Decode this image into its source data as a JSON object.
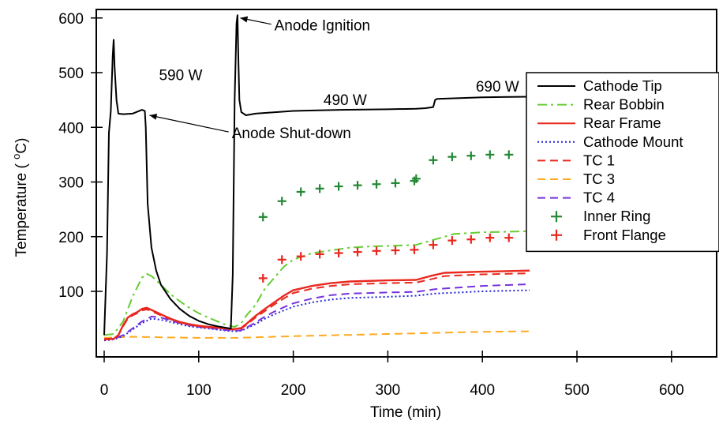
{
  "chart_data": {
    "type": "line",
    "title": "",
    "xlabel": "Time (min)",
    "ylabel_parts": {
      "pre": "Temperature ( ",
      "sup": "o",
      "post": "C)"
    },
    "xlim": [
      -10,
      650
    ],
    "ylim": [
      0,
      620
    ],
    "xticks": [
      0,
      100,
      200,
      300,
      400,
      500,
      600
    ],
    "yticks": [
      100,
      200,
      300,
      400,
      500,
      600
    ],
    "grid": false,
    "legend_position": "right",
    "annotations": [
      {
        "id": "anno-590w",
        "text": "590 W",
        "x": 58,
        "y": 486,
        "arrow_to": null
      },
      {
        "id": "anno-490w",
        "text": "490 W",
        "x": 232,
        "y": 441,
        "arrow_to": null
      },
      {
        "id": "anno-690w",
        "text": "690 W",
        "x": 393,
        "y": 465,
        "arrow_to": null
      },
      {
        "id": "anno-ignition",
        "text": "Anode Ignition",
        "x": 180,
        "y": 577,
        "arrow_to": [
          144,
          600
        ]
      },
      {
        "id": "anno-shutdown",
        "text": "Anode Shut-down",
        "x": 135,
        "y": 380,
        "arrow_to": [
          48,
          422
        ]
      }
    ],
    "series": [
      {
        "name": "Cathode Tip",
        "color": "#000000",
        "style": "solid",
        "marker": "none",
        "x": [
          0,
          3,
          5,
          7,
          9,
          10,
          11,
          13,
          15,
          20,
          30,
          40,
          43,
          44,
          46,
          50,
          55,
          60,
          70,
          80,
          90,
          100,
          110,
          120,
          130,
          134,
          136,
          138,
          140,
          141,
          142,
          143,
          145,
          150,
          160,
          200,
          250,
          300,
          330,
          340,
          348,
          350,
          352,
          400,
          450
        ],
        "y": [
          20,
          170,
          390,
          430,
          530,
          560,
          510,
          450,
          425,
          424,
          425,
          432,
          430,
          400,
          260,
          180,
          138,
          112,
          86,
          68,
          55,
          46,
          40,
          36,
          33,
          32,
          130,
          450,
          590,
          605,
          520,
          450,
          428,
          422,
          425,
          430,
          432,
          433,
          434,
          435,
          437,
          450,
          452,
          455,
          456
        ]
      },
      {
        "name": "Rear Bobbin",
        "color": "#66cc33",
        "style": "dashdot",
        "marker": "none",
        "x": [
          0,
          10,
          20,
          30,
          40,
          45,
          50,
          60,
          70,
          80,
          90,
          100,
          110,
          120,
          130,
          138,
          145,
          150,
          160,
          170,
          180,
          190,
          200,
          220,
          240,
          260,
          280,
          300,
          330,
          350,
          370,
          400,
          450
        ],
        "y": [
          20,
          22,
          45,
          90,
          125,
          132,
          128,
          112,
          95,
          82,
          70,
          60,
          52,
          45,
          38,
          35,
          42,
          55,
          75,
          105,
          125,
          145,
          158,
          170,
          175,
          180,
          182,
          183,
          185,
          195,
          205,
          208,
          210
        ]
      },
      {
        "name": "Rear Frame",
        "color": "#e8281e",
        "style": "solid",
        "marker": "none",
        "x": [
          0,
          10,
          15,
          20,
          25,
          30,
          35,
          40,
          45,
          50,
          60,
          70,
          80,
          90,
          100,
          110,
          120,
          130,
          138,
          145,
          150,
          160,
          170,
          180,
          190,
          200,
          220,
          240,
          260,
          300,
          330,
          345,
          360,
          400,
          450
        ],
        "y": [
          12,
          13,
          20,
          38,
          52,
          58,
          62,
          68,
          70,
          66,
          58,
          50,
          44,
          40,
          37,
          35,
          34,
          32,
          31,
          33,
          40,
          55,
          68,
          80,
          92,
          102,
          110,
          115,
          118,
          120,
          121,
          128,
          134,
          136,
          138
        ]
      },
      {
        "name": "Cathode Mount",
        "color": "#2222dd",
        "style": "dotted",
        "marker": "none",
        "x": [
          0,
          10,
          20,
          30,
          40,
          50,
          60,
          70,
          80,
          90,
          100,
          110,
          120,
          130,
          140,
          145,
          150,
          160,
          170,
          180,
          190,
          200,
          220,
          240,
          260,
          300,
          330,
          350,
          400,
          450
        ],
        "y": [
          10,
          12,
          18,
          30,
          42,
          50,
          48,
          44,
          40,
          36,
          34,
          32,
          30,
          28,
          27,
          28,
          32,
          40,
          50,
          58,
          65,
          72,
          80,
          85,
          88,
          90,
          92,
          96,
          100,
          102
        ]
      },
      {
        "name": "TC 1",
        "color": "#e8281e",
        "style": "dashed",
        "marker": "none",
        "x": [
          0,
          10,
          15,
          20,
          25,
          30,
          35,
          40,
          45,
          50,
          60,
          70,
          80,
          90,
          100,
          110,
          120,
          130,
          138,
          145,
          150,
          160,
          170,
          180,
          190,
          200,
          220,
          240,
          260,
          300,
          330,
          345,
          360,
          400,
          450
        ],
        "y": [
          13,
          14,
          20,
          36,
          50,
          56,
          60,
          65,
          67,
          64,
          56,
          49,
          43,
          39,
          36,
          34,
          33,
          31,
          30,
          32,
          38,
          52,
          64,
          76,
          87,
          97,
          105,
          110,
          113,
          115,
          116,
          122,
          128,
          131,
          133
        ]
      },
      {
        "name": "TC 3",
        "color": "#ffaa22",
        "style": "dashed",
        "marker": "none",
        "x": [
          0,
          30,
          60,
          100,
          140,
          200,
          300,
          400,
          450
        ],
        "y": [
          15,
          17,
          16,
          15,
          15,
          18,
          22,
          26,
          27
        ]
      },
      {
        "name": "TC 4",
        "color": "#7733dd",
        "style": "dashed",
        "marker": "none",
        "x": [
          0,
          10,
          20,
          30,
          40,
          50,
          60,
          70,
          80,
          90,
          100,
          110,
          120,
          130,
          140,
          145,
          150,
          160,
          170,
          180,
          190,
          200,
          220,
          240,
          260,
          300,
          330,
          350,
          400,
          450
        ],
        "y": [
          12,
          13,
          20,
          32,
          45,
          54,
          52,
          47,
          42,
          38,
          35,
          33,
          31,
          29,
          28,
          29,
          33,
          43,
          54,
          63,
          71,
          78,
          87,
          93,
          96,
          98,
          99,
          104,
          110,
          113
        ]
      },
      {
        "name": "Inner Ring",
        "color": "#228833",
        "style": "none",
        "marker": "plus",
        "x": [
          168,
          188,
          208,
          228,
          248,
          268,
          288,
          308,
          328,
          330,
          348,
          368,
          388,
          408,
          428
        ],
        "y": [
          236,
          265,
          282,
          288,
          292,
          294,
          296,
          298,
          302,
          306,
          340,
          346,
          348,
          350,
          350
        ]
      },
      {
        "name": "Front Flange",
        "color": "#e8281e",
        "style": "none",
        "marker": "plus",
        "x": [
          168,
          188,
          208,
          228,
          248,
          268,
          288,
          308,
          328,
          348,
          368,
          388,
          408,
          428
        ],
        "y": [
          124,
          158,
          164,
          168,
          170,
          172,
          174,
          175,
          176,
          185,
          193,
          195,
          198,
          198
        ]
      }
    ]
  }
}
